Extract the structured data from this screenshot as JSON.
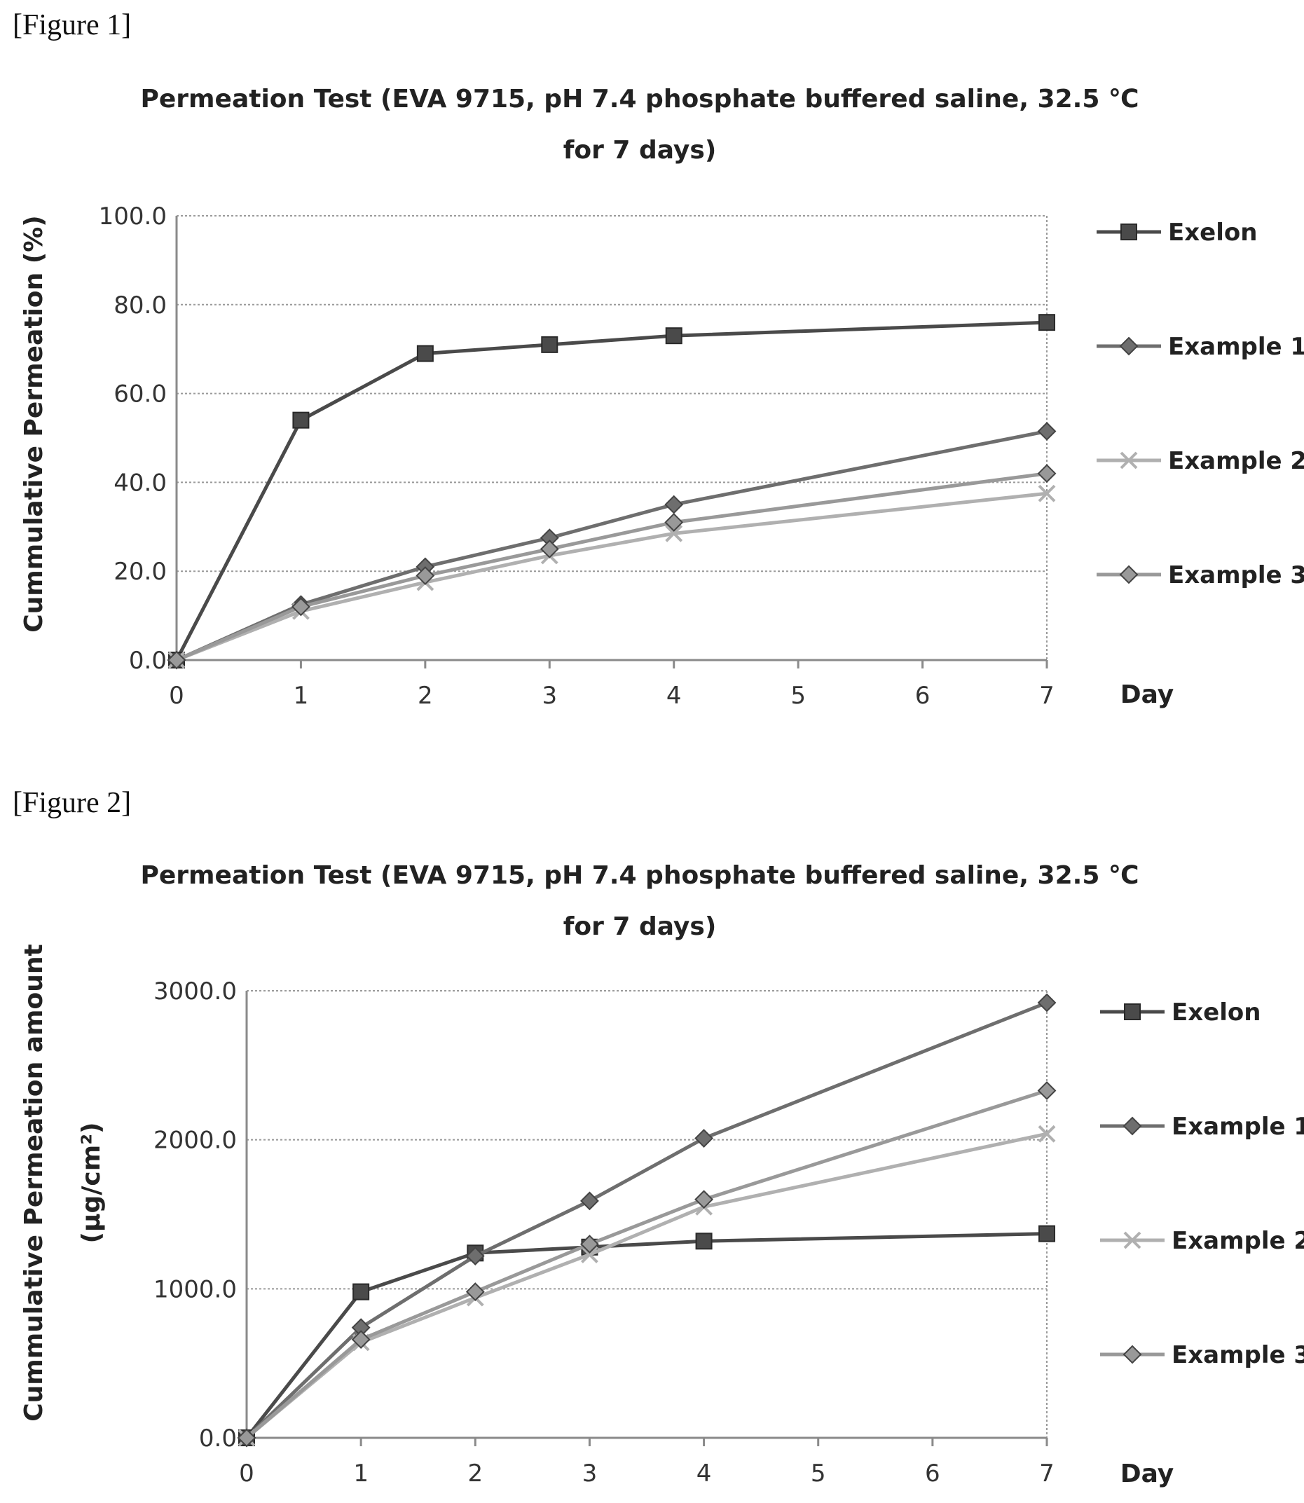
{
  "figure_labels": [
    "[Figure 1]",
    "[Figure 2]"
  ],
  "chart_data": [
    {
      "type": "line",
      "title_lines": [
        "Permeation Test  (EVA 9715, pH 7.4 phosphate buffered saline, 32.5 ℃",
        "for 7 days)"
      ],
      "xlabel": "Day",
      "ylabel_lines": [
        "Cummulative Permeation  (%)"
      ],
      "x_ticks": [
        "0",
        "1",
        "2",
        "3",
        "4",
        "5",
        "6",
        "7"
      ],
      "y_ticks": [
        "0.0",
        "20.0",
        "40.0",
        "60.0",
        "80.0",
        "100.0"
      ],
      "ylim": [
        0,
        100
      ],
      "xlim": [
        0,
        7
      ],
      "grid": true,
      "legend_position": "right",
      "series": [
        {
          "name": "Exelon",
          "x": [
            0,
            1,
            2,
            3,
            4,
            7
          ],
          "values": [
            0.0,
            54.0,
            69.0,
            71.0,
            73.0,
            76.0
          ],
          "color": "#4a4a4a",
          "marker": "square"
        },
        {
          "name": "Example 1",
          "x": [
            0,
            1,
            2,
            3,
            4,
            7
          ],
          "values": [
            0.0,
            12.5,
            21.0,
            27.5,
            35.0,
            51.5
          ],
          "color": "#6e6e6e",
          "marker": "diamond"
        },
        {
          "name": "Example 2",
          "x": [
            0,
            1,
            2,
            3,
            4,
            7
          ],
          "values": [
            0.0,
            11.0,
            17.5,
            23.5,
            28.5,
            37.5
          ],
          "color": "#b0b0b0",
          "marker": "x"
        },
        {
          "name": "Example 3",
          "x": [
            0,
            1,
            2,
            3,
            4,
            7
          ],
          "values": [
            0.0,
            12.0,
            19.0,
            25.0,
            31.0,
            42.0
          ],
          "color": "#999999",
          "marker": "diamond"
        }
      ]
    },
    {
      "type": "line",
      "title_lines": [
        "Permeation Test  (EVA 9715, pH 7.4 phosphate buffered saline, 32.5 ℃",
        "for 7 days)"
      ],
      "xlabel": "Day",
      "ylabel_lines": [
        "Cummulative Permeation  amount",
        "(μg/cm²)"
      ],
      "x_ticks": [
        "0",
        "1",
        "2",
        "3",
        "4",
        "5",
        "6",
        "7"
      ],
      "y_ticks": [
        "0.0",
        "1000.0",
        "2000.0",
        "3000.0"
      ],
      "ylim": [
        0,
        3000
      ],
      "xlim": [
        0,
        7
      ],
      "grid": true,
      "legend_position": "right",
      "series": [
        {
          "name": "Exelon",
          "x": [
            0,
            1,
            2,
            3,
            4,
            7
          ],
          "values": [
            0,
            980,
            1240,
            1280,
            1320,
            1370
          ],
          "color": "#4a4a4a",
          "marker": "square"
        },
        {
          "name": "Example 1",
          "x": [
            0,
            1,
            2,
            3,
            4,
            7
          ],
          "values": [
            0,
            740,
            1220,
            1590,
            2010,
            2920
          ],
          "color": "#6e6e6e",
          "marker": "diamond"
        },
        {
          "name": "Example 2",
          "x": [
            0,
            1,
            2,
            3,
            4,
            7
          ],
          "values": [
            0,
            640,
            940,
            1230,
            1550,
            2040
          ],
          "color": "#b0b0b0",
          "marker": "x"
        },
        {
          "name": "Example 3",
          "x": [
            0,
            1,
            2,
            3,
            4,
            7
          ],
          "values": [
            0,
            660,
            980,
            1300,
            1600,
            2330
          ],
          "color": "#999999",
          "marker": "diamond"
        }
      ]
    }
  ]
}
